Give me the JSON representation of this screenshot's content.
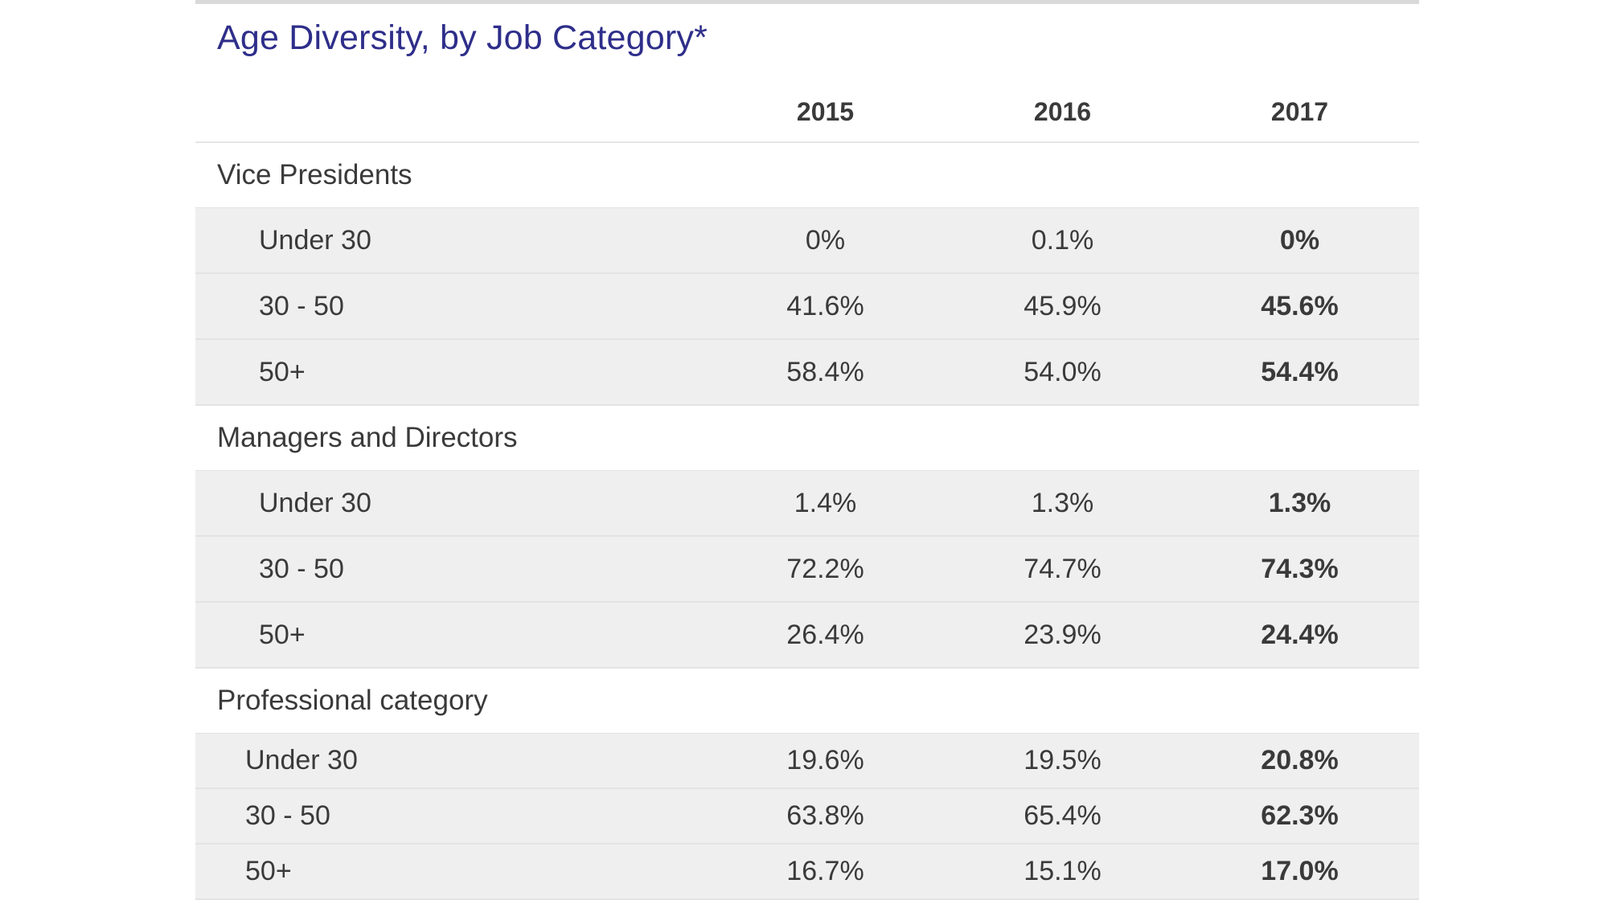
{
  "title": "Age Diversity, by Job Category*",
  "years": [
    "2015",
    "2016",
    "2017"
  ],
  "groups": [
    {
      "name": "Vice Presidents",
      "rows": [
        {
          "label": "Under 30",
          "values": [
            "0%",
            "0.1%",
            "0%"
          ]
        },
        {
          "label": "30 - 50",
          "values": [
            "41.6%",
            "45.9%",
            "45.6%"
          ]
        },
        {
          "label": "50+",
          "values": [
            "58.4%",
            "54.0%",
            "54.4%"
          ]
        }
      ]
    },
    {
      "name": "Managers and Directors",
      "rows": [
        {
          "label": "Under 30",
          "values": [
            "1.4%",
            "1.3%",
            "1.3%"
          ]
        },
        {
          "label": "30 - 50",
          "values": [
            "72.2%",
            "74.7%",
            "74.3%"
          ]
        },
        {
          "label": "50+",
          "values": [
            "26.4%",
            "23.9%",
            "24.4%"
          ]
        }
      ]
    },
    {
      "name": "Professional category",
      "rows": [
        {
          "label": "Under 30",
          "values": [
            "19.6%",
            "19.5%",
            "20.8%"
          ]
        },
        {
          "label": "30 - 50",
          "values": [
            "63.8%",
            "65.4%",
            "62.3%"
          ]
        },
        {
          "label": "50+",
          "values": [
            "16.7%",
            "15.1%",
            "17.0%"
          ]
        }
      ]
    }
  ]
}
